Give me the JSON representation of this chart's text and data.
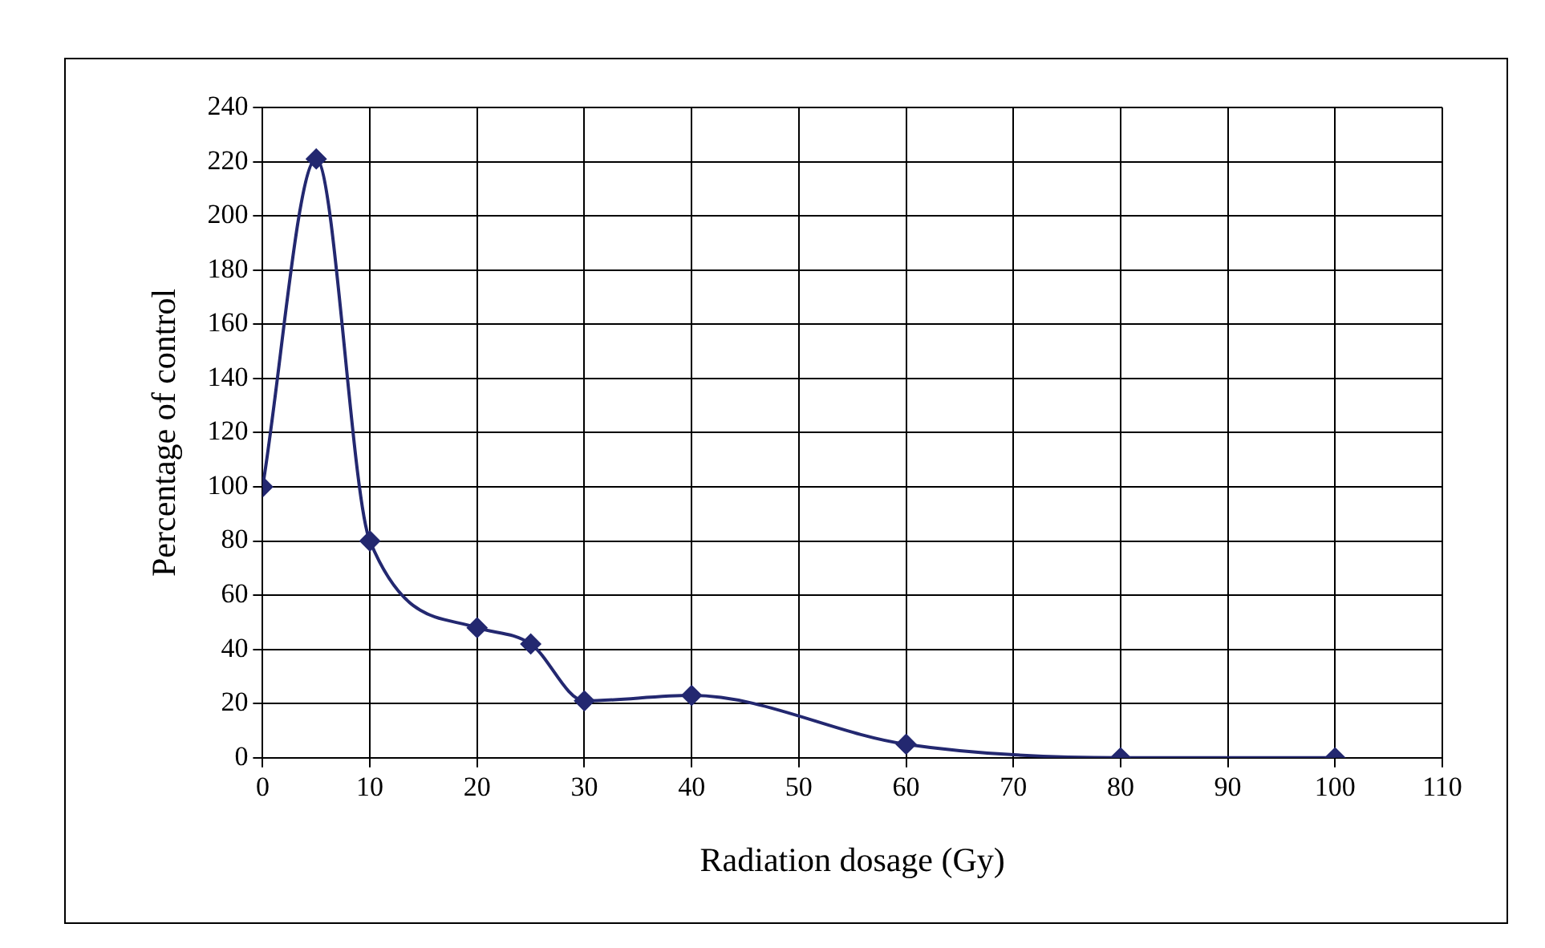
{
  "chart_data": {
    "type": "line",
    "xlabel": "Radiation dosage (Gy)",
    "ylabel": "Percentage of control",
    "x": [
      0,
      5,
      10,
      20,
      25,
      30,
      40,
      60,
      80,
      100
    ],
    "series": [
      {
        "color": "#232870",
        "values": [
          100,
          221,
          80,
          48,
          42,
          21,
          23,
          5,
          0,
          0
        ]
      }
    ],
    "xlim": [
      0,
      110
    ],
    "xticks": [
      0,
      10,
      20,
      30,
      40,
      50,
      60,
      70,
      80,
      90,
      100,
      110
    ],
    "ylim": [
      0,
      240
    ],
    "yticks": [
      0,
      20,
      40,
      60,
      80,
      100,
      120,
      140,
      160,
      180,
      200,
      220,
      240
    ],
    "grid": true,
    "legend": false,
    "marker": "diamond",
    "line_style": "solid"
  }
}
